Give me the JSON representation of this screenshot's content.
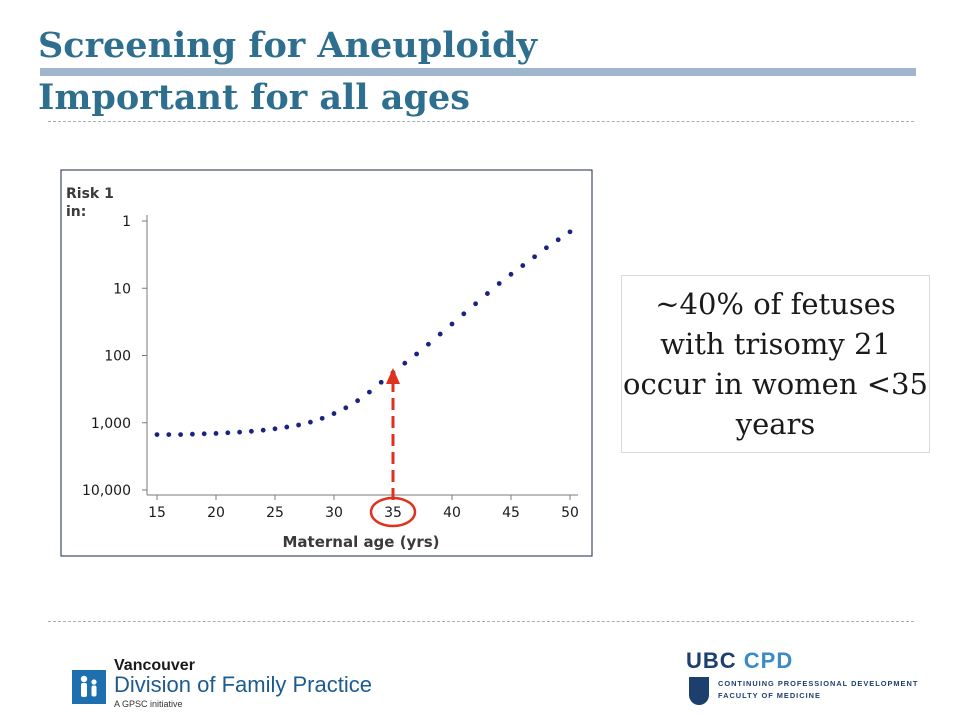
{
  "slide": {
    "title_line1": "Screening for Aneuploidy",
    "title_line2": "Important for all ages",
    "callout_text": "~40% of fetuses with trisomy 21 occur in women <35 years",
    "accent_color": "#2e6e8e",
    "title_bar_color": "#9fb6cc"
  },
  "chart_data": {
    "type": "scatter",
    "title": "",
    "ylabel": "Risk 1 in:",
    "xlabel": "Maternal age (yrs)",
    "x_ticks": [
      15,
      20,
      25,
      30,
      35,
      40,
      45,
      50
    ],
    "y_ticks": [
      "1",
      "10",
      "100",
      "1,000",
      "10,000"
    ],
    "y_tick_values": [
      1,
      10,
      100,
      1000,
      10000
    ],
    "y_scale": "log",
    "y_reversed": true,
    "xlim": [
      15,
      50
    ],
    "ylim": [
      1,
      10000
    ],
    "grid": false,
    "series": [
      {
        "points": [
          {
            "x": 15,
            "y": 1500
          },
          {
            "x": 16,
            "y": 1500
          },
          {
            "x": 17,
            "y": 1500
          },
          {
            "x": 18,
            "y": 1480
          },
          {
            "x": 19,
            "y": 1460
          },
          {
            "x": 20,
            "y": 1440
          },
          {
            "x": 21,
            "y": 1410
          },
          {
            "x": 22,
            "y": 1380
          },
          {
            "x": 23,
            "y": 1340
          },
          {
            "x": 24,
            "y": 1290
          },
          {
            "x": 25,
            "y": 1230
          },
          {
            "x": 26,
            "y": 1160
          },
          {
            "x": 27,
            "y": 1080
          },
          {
            "x": 28,
            "y": 980
          },
          {
            "x": 29,
            "y": 860
          },
          {
            "x": 30,
            "y": 730
          },
          {
            "x": 31,
            "y": 600
          },
          {
            "x": 32,
            "y": 470
          },
          {
            "x": 33,
            "y": 350
          },
          {
            "x": 34,
            "y": 250
          },
          {
            "x": 35,
            "y": 180
          },
          {
            "x": 36,
            "y": 130
          },
          {
            "x": 37,
            "y": 95
          },
          {
            "x": 38,
            "y": 68
          },
          {
            "x": 39,
            "y": 48
          },
          {
            "x": 40,
            "y": 34
          },
          {
            "x": 41,
            "y": 24
          },
          {
            "x": 42,
            "y": 17
          },
          {
            "x": 43,
            "y": 12
          },
          {
            "x": 44,
            "y": 8.5
          },
          {
            "x": 45,
            "y": 6.2
          },
          {
            "x": 46,
            "y": 4.6
          },
          {
            "x": 47,
            "y": 3.4
          },
          {
            "x": 48,
            "y": 2.5
          },
          {
            "x": 49,
            "y": 1.9
          },
          {
            "x": 50,
            "y": 1.45
          }
        ],
        "color": "#1a237e"
      }
    ],
    "annotation": {
      "highlighted_x": 35,
      "arrow_color": "#e0301e"
    }
  },
  "logos": {
    "vdfp_line1": "Vancouver",
    "vdfp_line2": "Division of Family Practice",
    "vdfp_line3": "A GPSC initiative",
    "ubc_word": "UBC",
    "ubc_cpd": "CPD",
    "ubc_line1": "CONTINUING PROFESSIONAL DEVELOPMENT",
    "ubc_line2": "FACULTY OF MEDICINE"
  }
}
